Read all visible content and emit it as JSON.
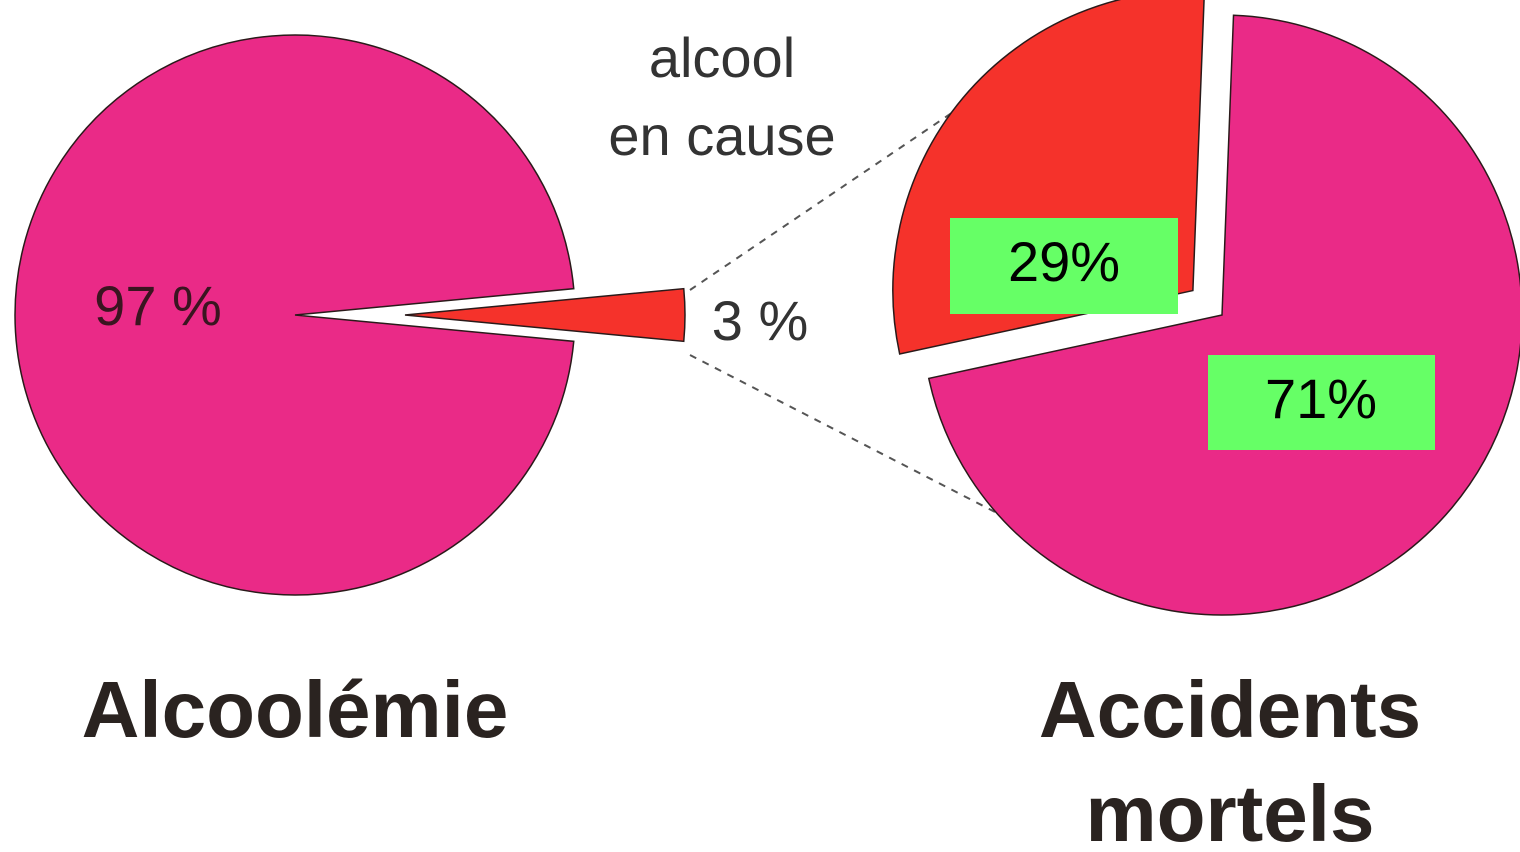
{
  "chart_data": [
    {
      "type": "pie",
      "title": "Alcoolémie",
      "values": [
        97,
        3
      ],
      "value_labels": [
        "97 %",
        "3 %"
      ],
      "colors": [
        "#ea2a87",
        "#f5322b"
      ],
      "annotation": [
        "alcool",
        "en cause"
      ]
    },
    {
      "type": "pie",
      "title": "Accidents mortels",
      "values": [
        29,
        71
      ],
      "value_labels": [
        "29%",
        "71%"
      ],
      "colors": [
        "#f5322b",
        "#ea2a87"
      ],
      "label_background": "#66ff66"
    }
  ]
}
